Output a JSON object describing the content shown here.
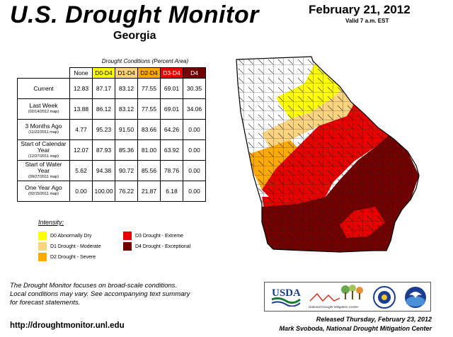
{
  "header": {
    "title": "U.S. Drought Monitor",
    "state": "Georgia",
    "date": "February 21, 2012",
    "valid": "Valid 7 a.m. EST"
  },
  "table": {
    "caption": "Drought Conditions (Percent Area)",
    "columns": [
      "None",
      "D0-D4",
      "D1-D4",
      "D2-D4",
      "D3-D4",
      "D4"
    ],
    "rows": [
      {
        "label": "Current",
        "sub": "",
        "values": [
          "12.83",
          "87.17",
          "83.12",
          "77.55",
          "69.01",
          "30.35"
        ]
      },
      {
        "label": "Last Week",
        "sub": "(02/14/2012 map)",
        "values": [
          "13.88",
          "86.12",
          "83.12",
          "77.55",
          "69.01",
          "34.06"
        ]
      },
      {
        "label": "3 Months Ago",
        "sub": "(11/22/2011 map)",
        "values": [
          "4.77",
          "95.23",
          "91.50",
          "83.66",
          "64.26",
          "0.00"
        ]
      },
      {
        "label": "Start of Calendar Year",
        "sub": "(12/27/2011 map)",
        "values": [
          "12.07",
          "87.93",
          "85.36",
          "81.00",
          "63.92",
          "0.00"
        ]
      },
      {
        "label": "Start of Water Year",
        "sub": "(09/27/2011 map)",
        "values": [
          "5.62",
          "94.38",
          "90.72",
          "85.56",
          "78.76",
          "0.00"
        ]
      },
      {
        "label": "One Year Ago",
        "sub": "(02/15/2011 map)",
        "values": [
          "0.00",
          "100.00",
          "76.22",
          "21.87",
          "6.18",
          "0.00"
        ]
      }
    ]
  },
  "legend": {
    "title": "Intensity:",
    "items": [
      {
        "label": "D0 Abnormally Dry",
        "color": "#ffff00"
      },
      {
        "label": "D1 Drought - Moderate",
        "color": "#fcd37f"
      },
      {
        "label": "D2 Drought - Severe",
        "color": "#ffaa00"
      },
      {
        "label": "D3 Drought - Extreme",
        "color": "#e60000"
      },
      {
        "label": "D4 Drought - Exceptional",
        "color": "#730000"
      }
    ]
  },
  "footer": {
    "note_line1": "The Drought Monitor focuses on broad-scale conditions.",
    "note_line2": "Local conditions may vary. See accompanying text summary",
    "note_line3": "for forecast statements.",
    "url": "http://droughtmonitor.unl.edu",
    "released": "Released Thursday, February 23, 2012",
    "author": "Mark Svoboda, National Drought Mitigation Center",
    "logos": {
      "usda": "USDA",
      "ndmc": "National Drought Mitigation Center"
    }
  }
}
